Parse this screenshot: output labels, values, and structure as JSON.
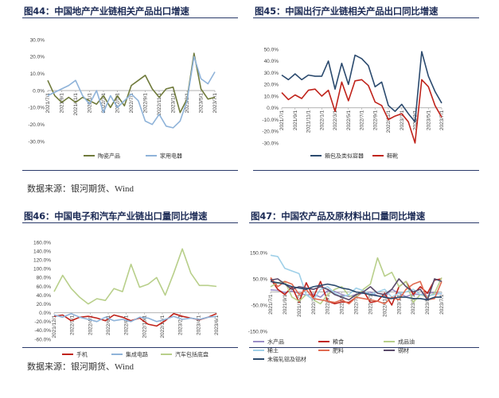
{
  "page": {
    "source_top": "数据来源：银河期货、Wind",
    "source_bottom": "数据来源：银河期货、Wind"
  },
  "chart_data": [
    {
      "id": "c44",
      "title": "图44：中国地产产业链相关产品出口增速",
      "type": "line",
      "ylim": [
        -30,
        30
      ],
      "ytick_step": 10,
      "ytick_decimals": 1,
      "x_tick_labels": [
        "2021/7/1",
        "2021/9/1",
        "2021/11/1",
        "2022/1/1",
        "2022/3/1",
        "2022/5/1",
        "2022/7/1",
        "2022/9/1",
        "2022/11/1",
        "2023/1/1",
        "2023/3/1",
        "2023/5/1",
        "2023/7/1"
      ],
      "x_count": 25,
      "legend_cols": 2,
      "series": [
        {
          "name": "陶瓷产品",
          "color": "#6f7a3b",
          "values": [
            6,
            -3,
            -7,
            -4,
            -7,
            -4,
            -6,
            -8,
            -3,
            -10,
            -3,
            -9,
            3,
            6,
            9,
            1,
            -4,
            1,
            2,
            -13,
            -5,
            22,
            1,
            -5,
            -4
          ]
        },
        {
          "name": "家用电器",
          "color": "#8fb3d9",
          "values": [
            -3,
            -1,
            1,
            3,
            6,
            -3,
            -8,
            0,
            -13,
            -3,
            -10,
            -6,
            -2,
            -6,
            -18,
            -20,
            -14,
            -21,
            -22,
            -18,
            -6,
            20,
            7,
            4,
            11
          ]
        }
      ]
    },
    {
      "id": "c45",
      "title": "图45：中国出行产业链相关产品出口同比增速",
      "type": "line",
      "ylim": [
        -30,
        50
      ],
      "ytick_step": 10,
      "ytick_decimals": 1,
      "x_tick_labels": [
        "2021/7/1",
        "2021/9/1",
        "2021/11/1",
        "2022/1/1",
        "2022/3/1",
        "2022/5/1",
        "2022/7/1",
        "2022/9/1",
        "2022/11/1",
        "2023/1/1",
        "2023/3/1",
        "2023/5/1",
        "2023/7/1"
      ],
      "x_count": 25,
      "legend_cols": 2,
      "series": [
        {
          "name": "箱包及类似容器",
          "color": "#2b4a6e",
          "values": [
            28,
            24,
            29,
            24,
            28,
            27,
            27,
            40,
            16,
            38,
            20,
            45,
            42,
            36,
            18,
            22,
            2,
            -3,
            3,
            -5,
            -12,
            48,
            27,
            14,
            4
          ]
        },
        {
          "name": "鞋靴",
          "color": "#c0231b",
          "values": [
            13,
            7,
            11,
            8,
            15,
            16,
            10,
            15,
            -3,
            22,
            6,
            23,
            24,
            19,
            5,
            2,
            -10,
            -7,
            -5,
            -12,
            -30,
            24,
            18,
            2,
            -8
          ]
        }
      ]
    },
    {
      "id": "c46",
      "title": "图46：中国电子和汽车产业链出口量同比增速",
      "type": "line",
      "ylim": [
        -60,
        160
      ],
      "ytick_step": 20,
      "ytick_decimals": 1,
      "x_tick_labels": [
        "2021/12/1",
        "2022/2/1",
        "2022/4/1",
        "2022/6/1",
        "2022/8/1",
        "2022/10/1",
        "2022/12/1",
        "2023/2/1",
        "2023/4/1",
        "2023/6/1"
      ],
      "x_count": 20,
      "legend_cols": 3,
      "series": [
        {
          "name": "手机",
          "color": "#c0231b",
          "values": [
            -8,
            -5,
            -18,
            -10,
            -8,
            -12,
            -18,
            -5,
            -10,
            -18,
            -12,
            -26,
            -30,
            -18,
            -2,
            -8,
            -12,
            -16,
            -10,
            -2
          ]
        },
        {
          "name": "集成电路",
          "color": "#8fb3d9",
          "values": [
            -5,
            -10,
            -2,
            -10,
            -15,
            -20,
            -10,
            -18,
            -15,
            -20,
            -10,
            -12,
            -20,
            -15,
            -8,
            -15,
            -12,
            -15,
            -10,
            -8
          ]
        },
        {
          "name": "汽车包括底盘",
          "color": "#b8cf8a",
          "values": [
            48,
            85,
            55,
            35,
            20,
            32,
            28,
            55,
            48,
            110,
            58,
            65,
            80,
            40,
            90,
            145,
            90,
            62,
            62,
            60
          ]
        }
      ]
    },
    {
      "id": "c47",
      "title": "图47：中国农产品及原材料出口量同比增速",
      "type": "line",
      "ylim": [
        -150,
        150
      ],
      "ytick_step": 100,
      "ytick_decimals": 1,
      "x_tick_labels": [
        "2021/7/1",
        "2021/9/1",
        "2021/11/1",
        "2022/1/1",
        "2022/3/1",
        "2022/5/1",
        "2022/7/1",
        "2022/9/1",
        "2022/11/1",
        "2023/1/1",
        "2023/3/1",
        "2023/5/1",
        "2023/7/1"
      ],
      "x_count": 25,
      "legend_cols": 3,
      "series": [
        {
          "name": "水产品",
          "color": "#9b8fc7",
          "values": [
            8,
            6,
            -2,
            4,
            -5,
            -12,
            -8,
            -20,
            5,
            2,
            -10,
            -18,
            -10,
            -5,
            0,
            -15,
            -20,
            10,
            -5,
            -18,
            -8,
            -10,
            -5,
            -2,
            -8
          ]
        },
        {
          "name": "粮食",
          "color": "#c0231b",
          "values": [
            50,
            10,
            -10,
            20,
            -40,
            35,
            -20,
            40,
            -35,
            -45,
            -38,
            -40,
            -20,
            5,
            -40,
            -35,
            -5,
            -50,
            20,
            40,
            -10,
            20,
            -5,
            45,
            50
          ]
        },
        {
          "name": "成品油",
          "color": "#b8cf8a",
          "values": [
            20,
            35,
            40,
            -20,
            -35,
            -10,
            -30,
            -45,
            -10,
            10,
            20,
            -15,
            -20,
            10,
            30,
            130,
            60,
            75,
            20,
            40,
            -40,
            -10,
            -20,
            -5,
            55
          ]
        },
        {
          "name": "稀土",
          "color": "#9fd0e8",
          "values": [
            140,
            135,
            90,
            80,
            70,
            -10,
            -30,
            10,
            20,
            -5,
            -20,
            -10,
            15,
            5,
            -10,
            0,
            10,
            -20,
            -5,
            0,
            10,
            -10,
            -15,
            -10,
            -5
          ]
        },
        {
          "name": "肥料",
          "color": "#e06a50",
          "values": [
            55,
            20,
            40,
            30,
            -10,
            10,
            -25,
            -30,
            -35,
            -40,
            -30,
            -45,
            -20,
            -25,
            -30,
            -35,
            -45,
            -20,
            -30,
            10,
            30,
            40,
            -30,
            -25,
            40
          ]
        },
        {
          "name": "钢材",
          "color": "#5a4a6a",
          "values": [
            45,
            50,
            30,
            10,
            20,
            15,
            10,
            20,
            10,
            -10,
            -20,
            -30,
            -10,
            0,
            20,
            -5,
            -10,
            10,
            50,
            20,
            0,
            10,
            -30,
            50,
            40
          ]
        },
        {
          "name": "未锻轧铝及铝材",
          "color": "#2b4a6e",
          "values": [
            40,
            35,
            30,
            20,
            15,
            10,
            20,
            25,
            30,
            25,
            15,
            10,
            0,
            -5,
            -10,
            -15,
            -20,
            -25,
            -20,
            -20,
            -25,
            -25,
            -30,
            -20,
            -20
          ]
        }
      ]
    }
  ]
}
